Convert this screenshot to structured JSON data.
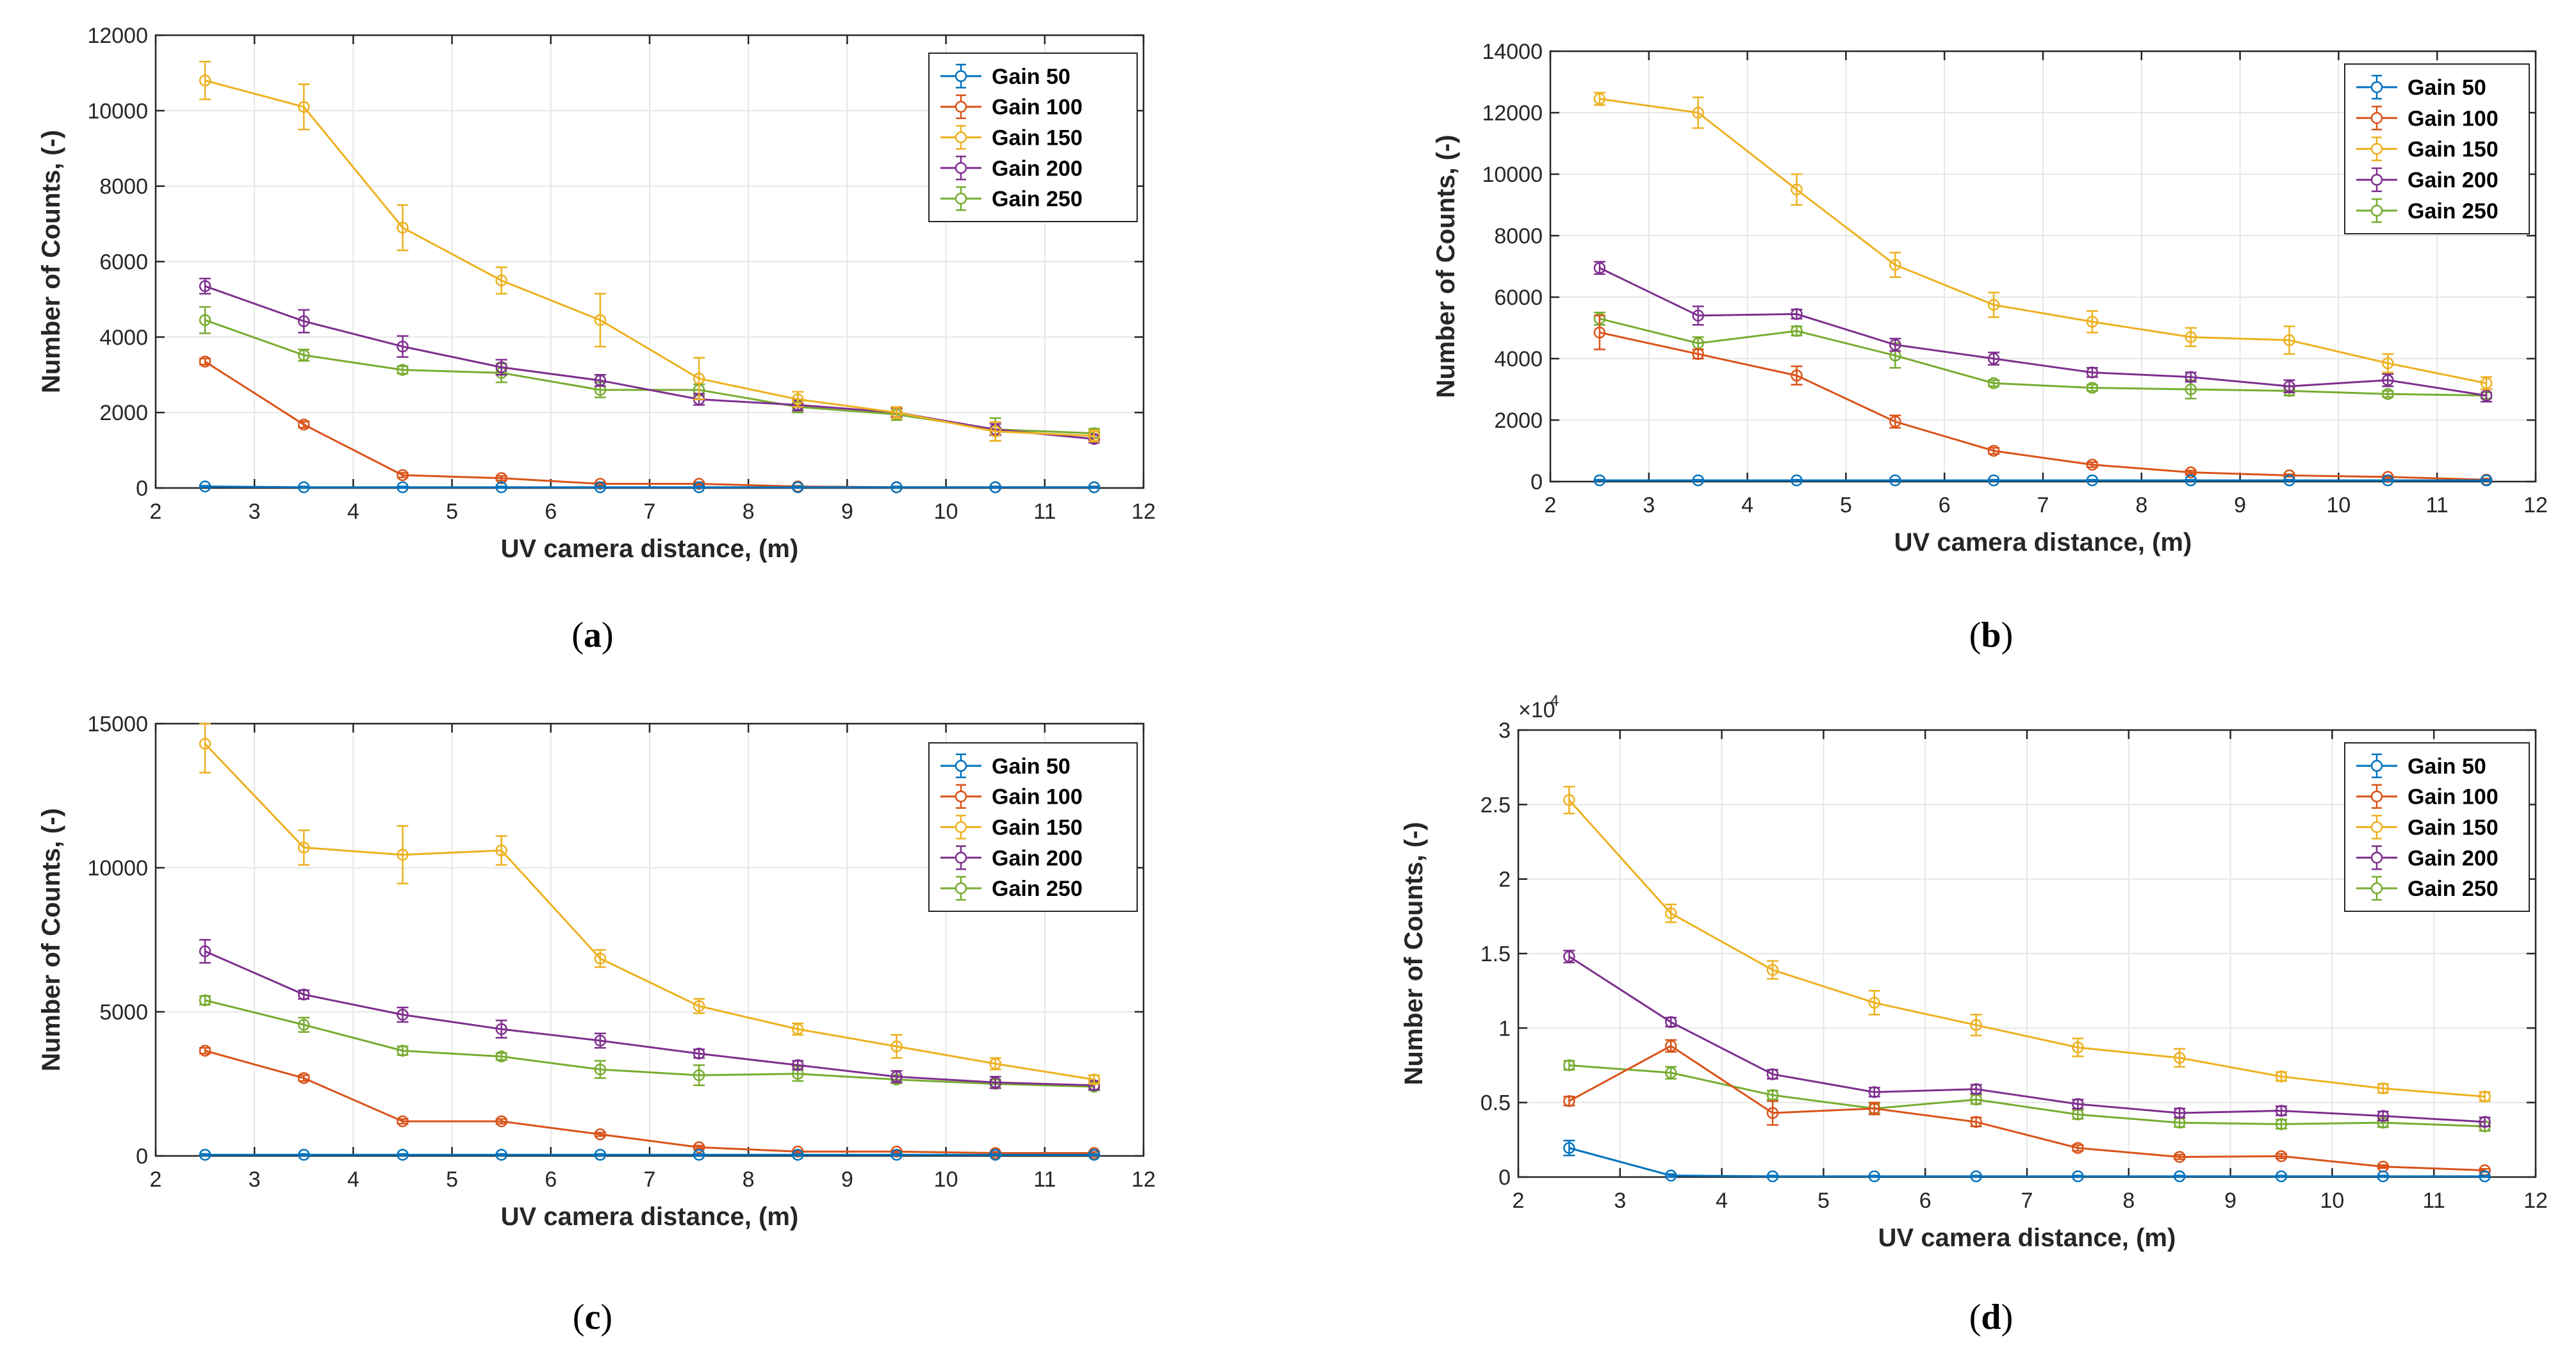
{
  "chart_data": [
    {
      "type": "line",
      "panel_caption": "a",
      "xlabel": "UV camera distance, (m)",
      "ylabel": "Number of Counts, (-)",
      "xlim": [
        2,
        12
      ],
      "ylim": [
        0,
        12000
      ],
      "yticks": [
        0,
        2000,
        4000,
        6000,
        8000,
        10000,
        12000
      ],
      "ytick_labels": [
        "0",
        "2000",
        "4000",
        "6000",
        "8000",
        "10000",
        "12000"
      ],
      "yscale_label": "",
      "x": [
        2.5,
        3.5,
        4.5,
        5.5,
        6.5,
        7.5,
        8.5,
        9.5,
        10.5,
        11.5
      ],
      "grid": true,
      "legend_position": "top-right",
      "series": [
        {
          "name": "Gain 50",
          "color": "#0072BD",
          "values": [
            40,
            20,
            20,
            20,
            20,
            20,
            20,
            20,
            20,
            20
          ],
          "errors": [
            20,
            20,
            20,
            20,
            20,
            20,
            20,
            20,
            20,
            20
          ]
        },
        {
          "name": "Gain 100",
          "color": "#D95319",
          "values": [
            3350,
            1680,
            340,
            260,
            110,
            110,
            40,
            20,
            20,
            20
          ],
          "errors": [
            80,
            80,
            60,
            60,
            40,
            40,
            20,
            20,
            20,
            20
          ]
        },
        {
          "name": "Gain 150",
          "color": "#EDB120",
          "values": [
            10800,
            10100,
            6900,
            5500,
            4450,
            2900,
            2350,
            2000,
            1500,
            1380
          ],
          "errors": [
            500,
            600,
            600,
            350,
            700,
            550,
            200,
            150,
            250,
            150
          ]
        },
        {
          "name": "Gain 200",
          "color": "#7E2F8E",
          "values": [
            5350,
            4420,
            3750,
            3200,
            2850,
            2350,
            2200,
            2000,
            1550,
            1300
          ],
          "errors": [
            200,
            300,
            280,
            200,
            150,
            150,
            150,
            120,
            150,
            100
          ]
        },
        {
          "name": "Gain 250",
          "color": "#77AC30",
          "values": [
            4450,
            3520,
            3130,
            3050,
            2600,
            2600,
            2150,
            1950,
            1550,
            1450
          ],
          "errors": [
            350,
            150,
            100,
            250,
            200,
            150,
            150,
            150,
            300,
            120
          ]
        }
      ]
    },
    {
      "type": "line",
      "panel_caption": "b",
      "xlabel": "UV camera distance, (m)",
      "ylabel": "Number of Counts, (-)",
      "xlim": [
        2,
        12
      ],
      "ylim": [
        0,
        14000
      ],
      "yticks": [
        0,
        2000,
        4000,
        6000,
        8000,
        10000,
        12000,
        14000
      ],
      "ytick_labels": [
        "0",
        "2000",
        "4000",
        "6000",
        "8000",
        "10000",
        "12000",
        "14000"
      ],
      "yscale_label": "",
      "x": [
        2.5,
        3.5,
        4.5,
        5.5,
        6.5,
        7.5,
        8.5,
        9.5,
        10.5,
        11.5
      ],
      "grid": true,
      "legend_position": "top-right",
      "series": [
        {
          "name": "Gain 50",
          "color": "#0072BD",
          "values": [
            40,
            40,
            40,
            40,
            40,
            40,
            40,
            40,
            40,
            40
          ],
          "errors": [
            20,
            20,
            20,
            20,
            20,
            20,
            20,
            20,
            20,
            20
          ]
        },
        {
          "name": "Gain 100",
          "color": "#D95319",
          "values": [
            4850,
            4150,
            3450,
            1950,
            1000,
            550,
            300,
            200,
            150,
            60
          ],
          "errors": [
            550,
            150,
            300,
            200,
            100,
            80,
            60,
            40,
            40,
            40
          ]
        },
        {
          "name": "Gain 150",
          "color": "#EDB120",
          "values": [
            12450,
            12000,
            9500,
            7050,
            5750,
            5200,
            4700,
            4600,
            3850,
            3200
          ],
          "errors": [
            200,
            500,
            500,
            400,
            400,
            350,
            300,
            450,
            300,
            200
          ]
        },
        {
          "name": "Gain 200",
          "color": "#7E2F8E",
          "values": [
            6950,
            5400,
            5450,
            4450,
            4000,
            3550,
            3400,
            3100,
            3300,
            2800
          ],
          "errors": [
            200,
            300,
            150,
            200,
            200,
            150,
            150,
            200,
            200,
            200
          ]
        },
        {
          "name": "Gain 250",
          "color": "#77AC30",
          "values": [
            5300,
            4500,
            4900,
            4100,
            3200,
            3050,
            3000,
            2950,
            2850,
            2800
          ],
          "errors": [
            200,
            200,
            150,
            400,
            100,
            100,
            300,
            150,
            100,
            100
          ]
        }
      ]
    },
    {
      "type": "line",
      "panel_caption": "c",
      "xlabel": "UV camera distance, (m)",
      "ylabel": "Number of Counts, (-)",
      "xlim": [
        2,
        12
      ],
      "ylim": [
        0,
        15000
      ],
      "yticks": [
        0,
        5000,
        10000,
        15000
      ],
      "ytick_labels": [
        "0",
        "5000",
        "10000",
        "15000"
      ],
      "yscale_label": "",
      "x": [
        2.5,
        3.5,
        4.5,
        5.5,
        6.5,
        7.5,
        8.5,
        9.5,
        10.5,
        11.5
      ],
      "grid": true,
      "legend_position": "top-right",
      "series": [
        {
          "name": "Gain 50",
          "color": "#0072BD",
          "values": [
            40,
            40,
            40,
            40,
            40,
            40,
            40,
            40,
            40,
            40
          ],
          "errors": [
            30,
            30,
            30,
            30,
            30,
            30,
            30,
            30,
            30,
            30
          ]
        },
        {
          "name": "Gain 100",
          "color": "#D95319",
          "values": [
            3650,
            2700,
            1200,
            1200,
            750,
            300,
            150,
            150,
            100,
            100
          ],
          "errors": [
            100,
            100,
            80,
            80,
            60,
            60,
            40,
            40,
            40,
            40
          ]
        },
        {
          "name": "Gain 150",
          "color": "#EDB120",
          "values": [
            14300,
            10700,
            10450,
            10600,
            6850,
            5200,
            4400,
            3800,
            3200,
            2650
          ],
          "errors": [
            1000,
            600,
            1000,
            500,
            300,
            250,
            200,
            400,
            200,
            150
          ]
        },
        {
          "name": "Gain 200",
          "color": "#7E2F8E",
          "values": [
            7100,
            5600,
            4900,
            4400,
            4000,
            3550,
            3150,
            2750,
            2550,
            2450
          ],
          "errors": [
            400,
            150,
            250,
            300,
            250,
            150,
            150,
            200,
            200,
            150
          ]
        },
        {
          "name": "Gain 250",
          "color": "#77AC30",
          "values": [
            5400,
            4550,
            3650,
            3450,
            3000,
            2800,
            2850,
            2650,
            2500,
            2400
          ],
          "errors": [
            150,
            250,
            150,
            120,
            300,
            350,
            250,
            120,
            150,
            120
          ]
        }
      ]
    },
    {
      "type": "line",
      "panel_caption": "d",
      "xlabel": "UV camera distance, (m)",
      "ylabel": "Number of Counts, (-)",
      "xlim": [
        2,
        12
      ],
      "ylim": [
        0,
        30000
      ],
      "yticks": [
        0,
        5000,
        10000,
        15000,
        20000,
        25000,
        30000
      ],
      "ytick_labels": [
        "0",
        "0.5",
        "1",
        "1.5",
        "2",
        "2.5",
        "3"
      ],
      "yscale_label": "×10",
      "yscale_exponent": "4",
      "x": [
        2.5,
        3.5,
        4.5,
        5.5,
        6.5,
        7.5,
        8.5,
        9.5,
        10.5,
        11.5
      ],
      "grid": true,
      "legend_position": "top-right",
      "series": [
        {
          "name": "Gain 50",
          "color": "#0072BD",
          "values": [
            1950,
            100,
            50,
            50,
            50,
            50,
            50,
            50,
            50,
            50
          ],
          "errors": [
            500,
            100,
            50,
            50,
            50,
            50,
            50,
            50,
            50,
            50
          ]
        },
        {
          "name": "Gain 100",
          "color": "#D95319",
          "values": [
            5100,
            8800,
            4300,
            4600,
            3700,
            1950,
            1350,
            1400,
            700,
            450
          ],
          "errors": [
            300,
            400,
            800,
            400,
            300,
            200,
            150,
            150,
            100,
            100
          ]
        },
        {
          "name": "Gain 150",
          "color": "#EDB120",
          "values": [
            25300,
            17700,
            13900,
            11700,
            10200,
            8700,
            8000,
            6750,
            5950,
            5400
          ],
          "errors": [
            900,
            600,
            600,
            800,
            700,
            600,
            600,
            300,
            300,
            300
          ]
        },
        {
          "name": "Gain 200",
          "color": "#7E2F8E",
          "values": [
            14800,
            10400,
            6900,
            5700,
            5900,
            4900,
            4300,
            4450,
            4100,
            3700
          ],
          "errors": [
            400,
            300,
            300,
            300,
            300,
            300,
            300,
            300,
            300,
            300
          ]
        },
        {
          "name": "Gain 250",
          "color": "#77AC30",
          "values": [
            7500,
            7000,
            5500,
            4600,
            5200,
            4200,
            3650,
            3550,
            3650,
            3400
          ],
          "errors": [
            300,
            400,
            300,
            300,
            300,
            300,
            300,
            300,
            300,
            300
          ]
        }
      ]
    }
  ]
}
